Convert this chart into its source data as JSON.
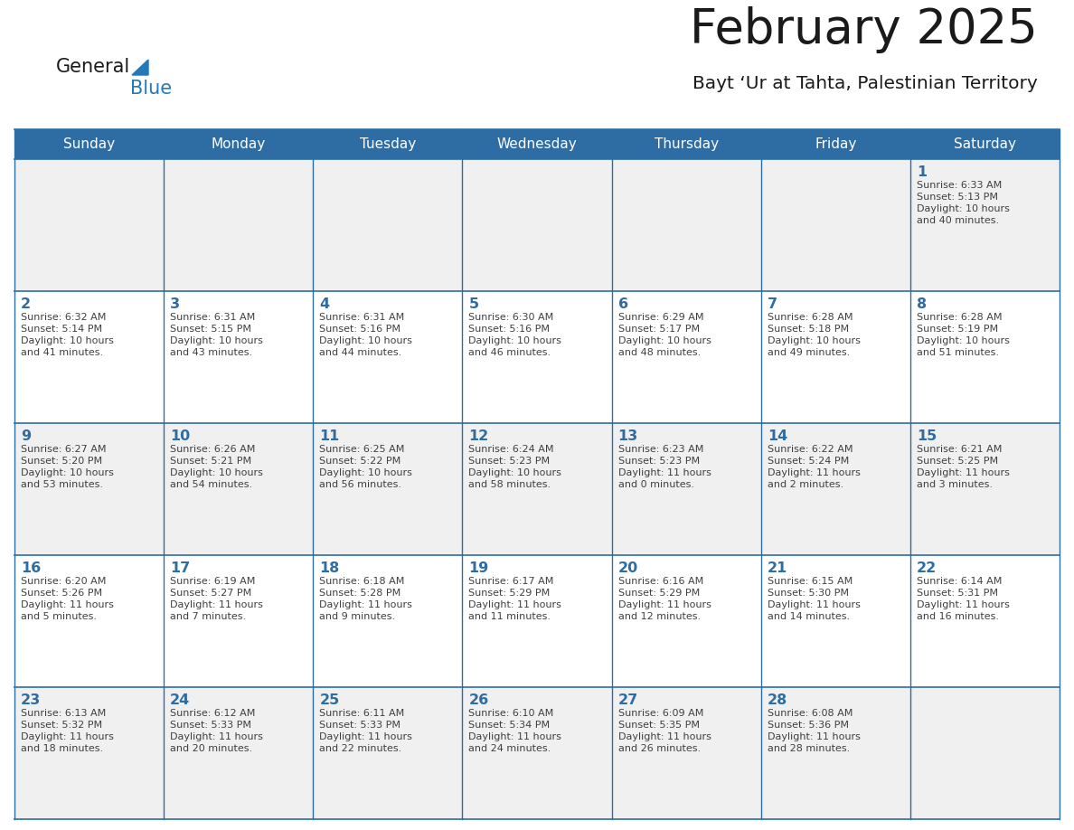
{
  "title": "February 2025",
  "subtitle": "Bayt ‘Ur at Tahta, Palestinian Territory",
  "days_of_week": [
    "Sunday",
    "Monday",
    "Tuesday",
    "Wednesday",
    "Thursday",
    "Friday",
    "Saturday"
  ],
  "header_bg": "#2E6DA4",
  "header_text": "#FFFFFF",
  "cell_bg_odd": "#F0F0F0",
  "cell_bg_even": "#FFFFFF",
  "border_color": "#2E6DA4",
  "title_color": "#1a1a1a",
  "subtitle_color": "#1a1a1a",
  "day_number_color": "#2E6DA4",
  "info_color": "#404040",
  "logo_general_color": "#1a1a1a",
  "logo_blue_color": "#2479B8",
  "calendar_data": [
    [
      null,
      null,
      null,
      null,
      null,
      null,
      {
        "day": 1,
        "sunrise": "6:33 AM",
        "sunset": "5:13 PM",
        "daylight_line1": "Daylight: 10 hours",
        "daylight_line2": "and 40 minutes."
      }
    ],
    [
      {
        "day": 2,
        "sunrise": "6:32 AM",
        "sunset": "5:14 PM",
        "daylight_line1": "Daylight: 10 hours",
        "daylight_line2": "and 41 minutes."
      },
      {
        "day": 3,
        "sunrise": "6:31 AM",
        "sunset": "5:15 PM",
        "daylight_line1": "Daylight: 10 hours",
        "daylight_line2": "and 43 minutes."
      },
      {
        "day": 4,
        "sunrise": "6:31 AM",
        "sunset": "5:16 PM",
        "daylight_line1": "Daylight: 10 hours",
        "daylight_line2": "and 44 minutes."
      },
      {
        "day": 5,
        "sunrise": "6:30 AM",
        "sunset": "5:16 PM",
        "daylight_line1": "Daylight: 10 hours",
        "daylight_line2": "and 46 minutes."
      },
      {
        "day": 6,
        "sunrise": "6:29 AM",
        "sunset": "5:17 PM",
        "daylight_line1": "Daylight: 10 hours",
        "daylight_line2": "and 48 minutes."
      },
      {
        "day": 7,
        "sunrise": "6:28 AM",
        "sunset": "5:18 PM",
        "daylight_line1": "Daylight: 10 hours",
        "daylight_line2": "and 49 minutes."
      },
      {
        "day": 8,
        "sunrise": "6:28 AM",
        "sunset": "5:19 PM",
        "daylight_line1": "Daylight: 10 hours",
        "daylight_line2": "and 51 minutes."
      }
    ],
    [
      {
        "day": 9,
        "sunrise": "6:27 AM",
        "sunset": "5:20 PM",
        "daylight_line1": "Daylight: 10 hours",
        "daylight_line2": "and 53 minutes."
      },
      {
        "day": 10,
        "sunrise": "6:26 AM",
        "sunset": "5:21 PM",
        "daylight_line1": "Daylight: 10 hours",
        "daylight_line2": "and 54 minutes."
      },
      {
        "day": 11,
        "sunrise": "6:25 AM",
        "sunset": "5:22 PM",
        "daylight_line1": "Daylight: 10 hours",
        "daylight_line2": "and 56 minutes."
      },
      {
        "day": 12,
        "sunrise": "6:24 AM",
        "sunset": "5:23 PM",
        "daylight_line1": "Daylight: 10 hours",
        "daylight_line2": "and 58 minutes."
      },
      {
        "day": 13,
        "sunrise": "6:23 AM",
        "sunset": "5:23 PM",
        "daylight_line1": "Daylight: 11 hours",
        "daylight_line2": "and 0 minutes."
      },
      {
        "day": 14,
        "sunrise": "6:22 AM",
        "sunset": "5:24 PM",
        "daylight_line1": "Daylight: 11 hours",
        "daylight_line2": "and 2 minutes."
      },
      {
        "day": 15,
        "sunrise": "6:21 AM",
        "sunset": "5:25 PM",
        "daylight_line1": "Daylight: 11 hours",
        "daylight_line2": "and 3 minutes."
      }
    ],
    [
      {
        "day": 16,
        "sunrise": "6:20 AM",
        "sunset": "5:26 PM",
        "daylight_line1": "Daylight: 11 hours",
        "daylight_line2": "and 5 minutes."
      },
      {
        "day": 17,
        "sunrise": "6:19 AM",
        "sunset": "5:27 PM",
        "daylight_line1": "Daylight: 11 hours",
        "daylight_line2": "and 7 minutes."
      },
      {
        "day": 18,
        "sunrise": "6:18 AM",
        "sunset": "5:28 PM",
        "daylight_line1": "Daylight: 11 hours",
        "daylight_line2": "and 9 minutes."
      },
      {
        "day": 19,
        "sunrise": "6:17 AM",
        "sunset": "5:29 PM",
        "daylight_line1": "Daylight: 11 hours",
        "daylight_line2": "and 11 minutes."
      },
      {
        "day": 20,
        "sunrise": "6:16 AM",
        "sunset": "5:29 PM",
        "daylight_line1": "Daylight: 11 hours",
        "daylight_line2": "and 12 minutes."
      },
      {
        "day": 21,
        "sunrise": "6:15 AM",
        "sunset": "5:30 PM",
        "daylight_line1": "Daylight: 11 hours",
        "daylight_line2": "and 14 minutes."
      },
      {
        "day": 22,
        "sunrise": "6:14 AM",
        "sunset": "5:31 PM",
        "daylight_line1": "Daylight: 11 hours",
        "daylight_line2": "and 16 minutes."
      }
    ],
    [
      {
        "day": 23,
        "sunrise": "6:13 AM",
        "sunset": "5:32 PM",
        "daylight_line1": "Daylight: 11 hours",
        "daylight_line2": "and 18 minutes."
      },
      {
        "day": 24,
        "sunrise": "6:12 AM",
        "sunset": "5:33 PM",
        "daylight_line1": "Daylight: 11 hours",
        "daylight_line2": "and 20 minutes."
      },
      {
        "day": 25,
        "sunrise": "6:11 AM",
        "sunset": "5:33 PM",
        "daylight_line1": "Daylight: 11 hours",
        "daylight_line2": "and 22 minutes."
      },
      {
        "day": 26,
        "sunrise": "6:10 AM",
        "sunset": "5:34 PM",
        "daylight_line1": "Daylight: 11 hours",
        "daylight_line2": "and 24 minutes."
      },
      {
        "day": 27,
        "sunrise": "6:09 AM",
        "sunset": "5:35 PM",
        "daylight_line1": "Daylight: 11 hours",
        "daylight_line2": "and 26 minutes."
      },
      {
        "day": 28,
        "sunrise": "6:08 AM",
        "sunset": "5:36 PM",
        "daylight_line1": "Daylight: 11 hours",
        "daylight_line2": "and 28 minutes."
      },
      null
    ]
  ]
}
